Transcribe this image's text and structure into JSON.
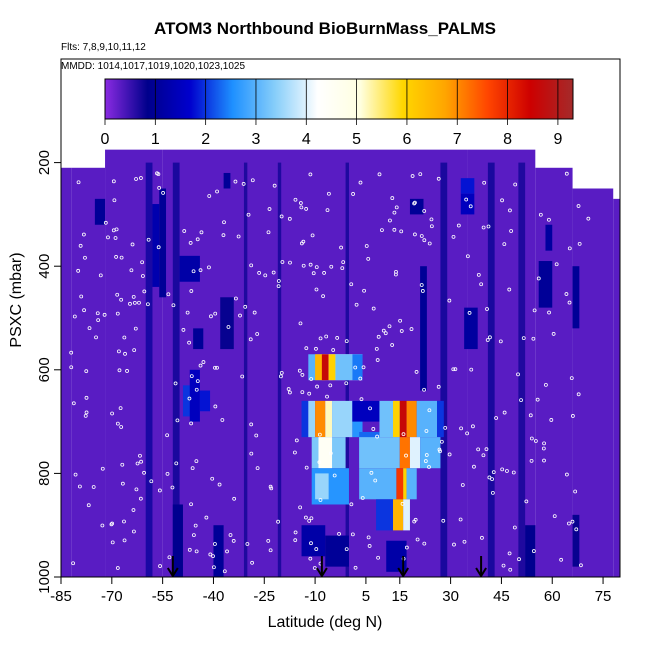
{
  "chart_data": {
    "type": "heatmap",
    "title": "ATOM3 Northbound BioBurnMass_PALMS",
    "subtitle_lines": [
      "Flts: 7,8,9,10,11,12",
      "MMDD: 1014,1017,1019,1020,1023,1025"
    ],
    "xlabel": "Latitude (deg N)",
    "ylabel": "PSXC (mbar)",
    "x_ticks": [
      -85,
      -70,
      -55,
      -40,
      -25,
      -10,
      5,
      15,
      30,
      45,
      60,
      75
    ],
    "x_tick_labels": [
      "-85",
      "-70",
      "-55",
      "-40",
      "-25",
      "-10",
      "5",
      "15",
      "30",
      "45",
      "60",
      "75"
    ],
    "y_ticks": [
      200,
      400,
      600,
      800,
      1000
    ],
    "y_tick_labels": [
      "200",
      "400",
      "600",
      "800",
      "1000"
    ],
    "xlim": [
      -85,
      80
    ],
    "ylim": [
      1000,
      0
    ],
    "y_reversed": true,
    "colorbar": {
      "min": 0,
      "max": 9.3,
      "ticks": [
        0,
        1,
        2,
        3,
        4,
        5,
        6,
        7,
        8,
        9
      ],
      "tick_labels": [
        "0",
        "1",
        "2",
        "3",
        "4",
        "5",
        "6",
        "7",
        "8",
        "9"
      ],
      "position": "top",
      "colors": [
        "#8a2be2",
        "#00008b",
        "#0000cd",
        "#1e90ff",
        "#87cefa",
        "#ffffff",
        "#ffffe0",
        "#ffd700",
        "#ffa500",
        "#ff4500",
        "#cd0000",
        "#a52a2a"
      ]
    },
    "background_value": 0.3,
    "background_color": "#8a2be2",
    "coverage": [
      {
        "x": [
          -85,
          -82
        ],
        "y": [
          210,
          1000
        ]
      },
      {
        "x": [
          -82,
          -72
        ],
        "y": [
          210,
          1000
        ]
      },
      {
        "x": [
          -72,
          -55
        ],
        "y": [
          175,
          1000
        ]
      },
      {
        "x": [
          -55,
          35
        ],
        "y": [
          175,
          1000
        ]
      },
      {
        "x": [
          35,
          55
        ],
        "y": [
          175,
          1000
        ]
      },
      {
        "x": [
          55,
          66
        ],
        "y": [
          210,
          1000
        ]
      },
      {
        "x": [
          66,
          78
        ],
        "y": [
          250,
          1000
        ]
      },
      {
        "x": [
          78,
          80
        ],
        "y": [
          270,
          1000
        ]
      }
    ],
    "cells": [
      {
        "x": [
          -75,
          -72
        ],
        "y": [
          270,
          320
        ],
        "value": 1.0
      },
      {
        "x": [
          -58,
          -56
        ],
        "y": [
          280,
          440
        ],
        "value": 1.3
      },
      {
        "x": [
          -56,
          -54
        ],
        "y": [
          250,
          460
        ],
        "value": 1.0
      },
      {
        "x": [
          -50,
          -44
        ],
        "y": [
          380,
          430
        ],
        "value": 1.2
      },
      {
        "x": [
          -46,
          -43
        ],
        "y": [
          520,
          560
        ],
        "value": 1.0
      },
      {
        "x": [
          -49,
          -46
        ],
        "y": [
          630,
          690
        ],
        "value": 2.0
      },
      {
        "x": [
          -47,
          -44
        ],
        "y": [
          600,
          700
        ],
        "value": 1.5
      },
      {
        "x": [
          -44,
          -41
        ],
        "y": [
          640,
          680
        ],
        "value": 1.8
      },
      {
        "x": [
          -52,
          -49
        ],
        "y": [
          860,
          1000
        ],
        "value": 0.9
      },
      {
        "x": [
          -40,
          -37
        ],
        "y": [
          900,
          1000
        ],
        "value": 1.0
      },
      {
        "x": [
          -37,
          -35
        ],
        "y": [
          220,
          250
        ],
        "value": 1.0
      },
      {
        "x": [
          -38,
          -34
        ],
        "y": [
          460,
          560
        ],
        "value": 0.8
      },
      {
        "x": [
          -8,
          4
        ],
        "y": [
          570,
          620
        ],
        "value": 4.0
      },
      {
        "x": [
          -12,
          -8
        ],
        "y": [
          570,
          620
        ],
        "value": 3.0
      },
      {
        "x": [
          -10,
          -7
        ],
        "y": [
          570,
          620
        ],
        "value": 6.5
      },
      {
        "x": [
          -8,
          -6
        ],
        "y": [
          570,
          620
        ],
        "value": 8.6
      },
      {
        "x": [
          -6,
          -4
        ],
        "y": [
          570,
          620
        ],
        "value": 6.0
      },
      {
        "x": [
          -4,
          1
        ],
        "y": [
          570,
          620
        ],
        "value": 3.2
      },
      {
        "x": [
          1,
          4
        ],
        "y": [
          570,
          620
        ],
        "value": 2.4
      },
      {
        "x": [
          -14,
          -12
        ],
        "y": [
          660,
          730
        ],
        "value": 2.0
      },
      {
        "x": [
          -12,
          -10
        ],
        "y": [
          660,
          730
        ],
        "value": 3.5
      },
      {
        "x": [
          -10,
          -7
        ],
        "y": [
          660,
          730
        ],
        "value": 7.0
      },
      {
        "x": [
          -7,
          -5
        ],
        "y": [
          660,
          730
        ],
        "value": 5.2
      },
      {
        "x": [
          -5,
          1
        ],
        "y": [
          660,
          730
        ],
        "value": 3.5
      },
      {
        "x": [
          1,
          4
        ],
        "y": [
          660,
          730
        ],
        "value": 2.6
      },
      {
        "x": [
          -11,
          -1
        ],
        "y": [
          730,
          790
        ],
        "value": 3.3
      },
      {
        "x": [
          -9,
          -5
        ],
        "y": [
          730,
          790
        ],
        "value": 4.5
      },
      {
        "x": [
          -11,
          0
        ],
        "y": [
          790,
          860
        ],
        "value": 2.6
      },
      {
        "x": [
          -10,
          -6
        ],
        "y": [
          800,
          850
        ],
        "value": 3.5
      },
      {
        "x": [
          -14,
          -7
        ],
        "y": [
          900,
          960
        ],
        "value": 1.2
      },
      {
        "x": [
          -7,
          0
        ],
        "y": [
          920,
          980
        ],
        "value": 1.0
      },
      {
        "x": [
          1,
          9
        ],
        "y": [
          660,
          700
        ],
        "value": 1.5
      },
      {
        "x": [
          3,
          9
        ],
        "y": [
          720,
          780
        ],
        "value": 2.3
      },
      {
        "x": [
          9,
          15
        ],
        "y": [
          660,
          730
        ],
        "value": 3.2
      },
      {
        "x": [
          13,
          15
        ],
        "y": [
          660,
          730
        ],
        "value": 6.0
      },
      {
        "x": [
          15,
          17
        ],
        "y": [
          660,
          730
        ],
        "value": 8.6
      },
      {
        "x": [
          17,
          20
        ],
        "y": [
          660,
          730
        ],
        "value": 7.0
      },
      {
        "x": [
          20,
          26
        ],
        "y": [
          660,
          730
        ],
        "value": 3.0
      },
      {
        "x": [
          26,
          28
        ],
        "y": [
          660,
          730
        ],
        "value": 2.0
      },
      {
        "x": [
          3,
          15
        ],
        "y": [
          730,
          790
        ],
        "value": 3.2
      },
      {
        "x": [
          15,
          18
        ],
        "y": [
          730,
          790
        ],
        "value": 7.2
      },
      {
        "x": [
          18,
          21
        ],
        "y": [
          730,
          790
        ],
        "value": 4.0
      },
      {
        "x": [
          21,
          27
        ],
        "y": [
          730,
          790
        ],
        "value": 3.0
      },
      {
        "x": [
          3,
          14
        ],
        "y": [
          790,
          850
        ],
        "value": 3.0
      },
      {
        "x": [
          14,
          16
        ],
        "y": [
          790,
          850
        ],
        "value": 7.8
      },
      {
        "x": [
          16,
          17
        ],
        "y": [
          790,
          850
        ],
        "value": 6.0
      },
      {
        "x": [
          17,
          20
        ],
        "y": [
          790,
          850
        ],
        "value": 3.0
      },
      {
        "x": [
          8,
          13
        ],
        "y": [
          850,
          910
        ],
        "value": 2.0
      },
      {
        "x": [
          13,
          16
        ],
        "y": [
          850,
          910
        ],
        "value": 6.5
      },
      {
        "x": [
          16,
          18
        ],
        "y": [
          850,
          910
        ],
        "value": 4.0
      },
      {
        "x": [
          11,
          17
        ],
        "y": [
          930,
          990
        ],
        "value": 1.2
      },
      {
        "x": [
          21,
          23
        ],
        "y": [
          400,
          640
        ],
        "value": 1.0
      },
      {
        "x": [
          18,
          22
        ],
        "y": [
          270,
          300
        ],
        "value": 1.0
      },
      {
        "x": [
          33,
          37
        ],
        "y": [
          230,
          260
        ],
        "value": 1.8
      },
      {
        "x": [
          33,
          37
        ],
        "y": [
          260,
          300
        ],
        "value": 1.5
      },
      {
        "x": [
          34,
          38
        ],
        "y": [
          480,
          560
        ],
        "value": 1.1
      },
      {
        "x": [
          58,
          60
        ],
        "y": [
          320,
          370
        ],
        "value": 1.1
      },
      {
        "x": [
          56,
          60
        ],
        "y": [
          390,
          480
        ],
        "value": 1.0
      },
      {
        "x": [
          66,
          68
        ],
        "y": [
          400,
          520
        ],
        "value": 1.0
      },
      {
        "x": [
          52,
          55
        ],
        "y": [
          900,
          1000
        ],
        "value": 0.9
      },
      {
        "x": [
          66,
          68
        ],
        "y": [
          880,
          980
        ],
        "value": 0.8
      }
    ],
    "stripes": [
      {
        "x": [
          -60,
          -58
        ],
        "value": 1.0
      },
      {
        "x": [
          -52,
          -50
        ],
        "value": 0.9
      },
      {
        "x": [
          -31,
          -30
        ],
        "value": 0.8
      },
      {
        "x": [
          -21,
          -20
        ],
        "value": 0.8
      },
      {
        "x": [
          -1,
          0
        ],
        "value": 0.8
      },
      {
        "x": [
          27,
          29
        ],
        "value": 0.9
      },
      {
        "x": [
          41,
          43
        ],
        "value": 0.9
      },
      {
        "x": [
          50,
          52
        ],
        "value": 0.8
      }
    ],
    "arrows_x": [
      -52,
      -8,
      16,
      39
    ]
  }
}
